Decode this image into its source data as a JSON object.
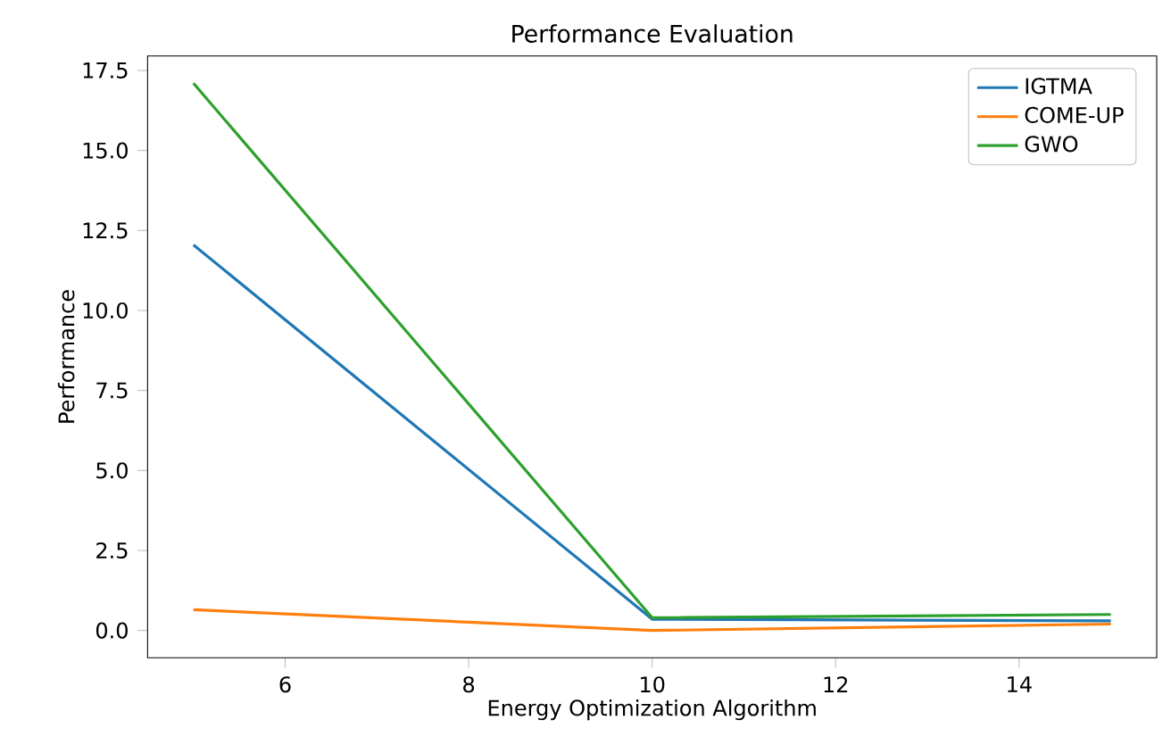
{
  "chart_data": {
    "type": "line",
    "title": "Performance Evaluation",
    "xlabel": "Energy Optimization Algorithm",
    "ylabel": "Performance",
    "x": [
      5,
      10,
      15
    ],
    "series": [
      {
        "name": "IGTMA",
        "color": "#1f77b4",
        "values": [
          12.05,
          0.35,
          0.3
        ]
      },
      {
        "name": "COME-UP",
        "color": "#ff7f0e",
        "values": [
          0.65,
          0.0,
          0.2
        ]
      },
      {
        "name": "GWO",
        "color": "#2ca02c",
        "values": [
          17.1,
          0.4,
          0.5
        ]
      }
    ],
    "xlim": [
      4.5,
      15.5
    ],
    "ylim": [
      -0.855,
      17.955
    ],
    "xticks": [
      6,
      8,
      10,
      12,
      14
    ],
    "yticks": [
      {
        "value": 0,
        "label": "0.0"
      },
      {
        "value": 2.5,
        "label": "2.5"
      },
      {
        "value": 5,
        "label": "5.0"
      },
      {
        "value": 7.5,
        "label": "7.5"
      },
      {
        "value": 10,
        "label": "10.0"
      },
      {
        "value": 12.5,
        "label": "12.5"
      },
      {
        "value": 15,
        "label": "15.0"
      },
      {
        "value": 17.5,
        "label": "17.5"
      }
    ],
    "legend": "top right",
    "grid": false,
    "marker": "none",
    "line_style": "solid"
  }
}
